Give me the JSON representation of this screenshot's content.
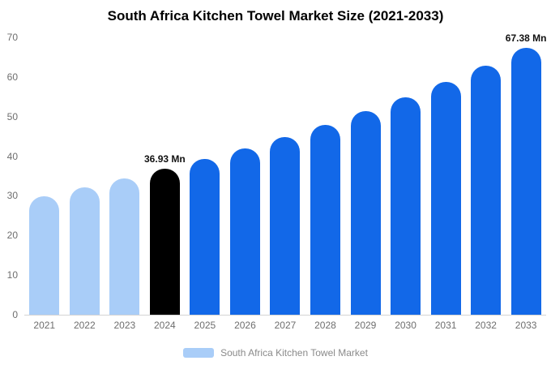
{
  "title": "South Africa Kitchen Towel Market Size (2021-2033)",
  "legend": {
    "label": "South Africa Kitchen Towel Market",
    "swatch_color": "#a9cdf8"
  },
  "colors": {
    "historical": "#a9cdf8",
    "base_year": "#000000",
    "forecast": "#1268e8",
    "axis_text": "#6e6e6e",
    "axis_line": "#d4d4d4"
  },
  "chart_data": {
    "type": "bar",
    "title": "South Africa Kitchen Towel Market Size (2021-2033)",
    "categories": [
      "2021",
      "2022",
      "2023",
      "2024",
      "2025",
      "2026",
      "2027",
      "2028",
      "2029",
      "2030",
      "2031",
      "2032",
      "2033"
    ],
    "values": [
      29.8,
      32.1,
      34.4,
      36.93,
      39.3,
      42.0,
      44.9,
      48.0,
      51.3,
      54.9,
      58.7,
      62.8,
      67.38
    ],
    "unit": "Mn",
    "bar_colors": [
      "#a9cdf8",
      "#a9cdf8",
      "#a9cdf8",
      "#000000",
      "#1268e8",
      "#1268e8",
      "#1268e8",
      "#1268e8",
      "#1268e8",
      "#1268e8",
      "#1268e8",
      "#1268e8",
      "#1268e8"
    ],
    "data_labels": [
      {
        "index": 3,
        "text": "36.93 Mn"
      },
      {
        "index": 12,
        "text": "67.38 Mn"
      }
    ],
    "xlabel": "",
    "ylabel": "",
    "ylim": [
      0,
      70
    ],
    "yticks": [
      0,
      10,
      20,
      30,
      40,
      50,
      60,
      70
    ],
    "grid": false,
    "legend_position": "bottom"
  }
}
